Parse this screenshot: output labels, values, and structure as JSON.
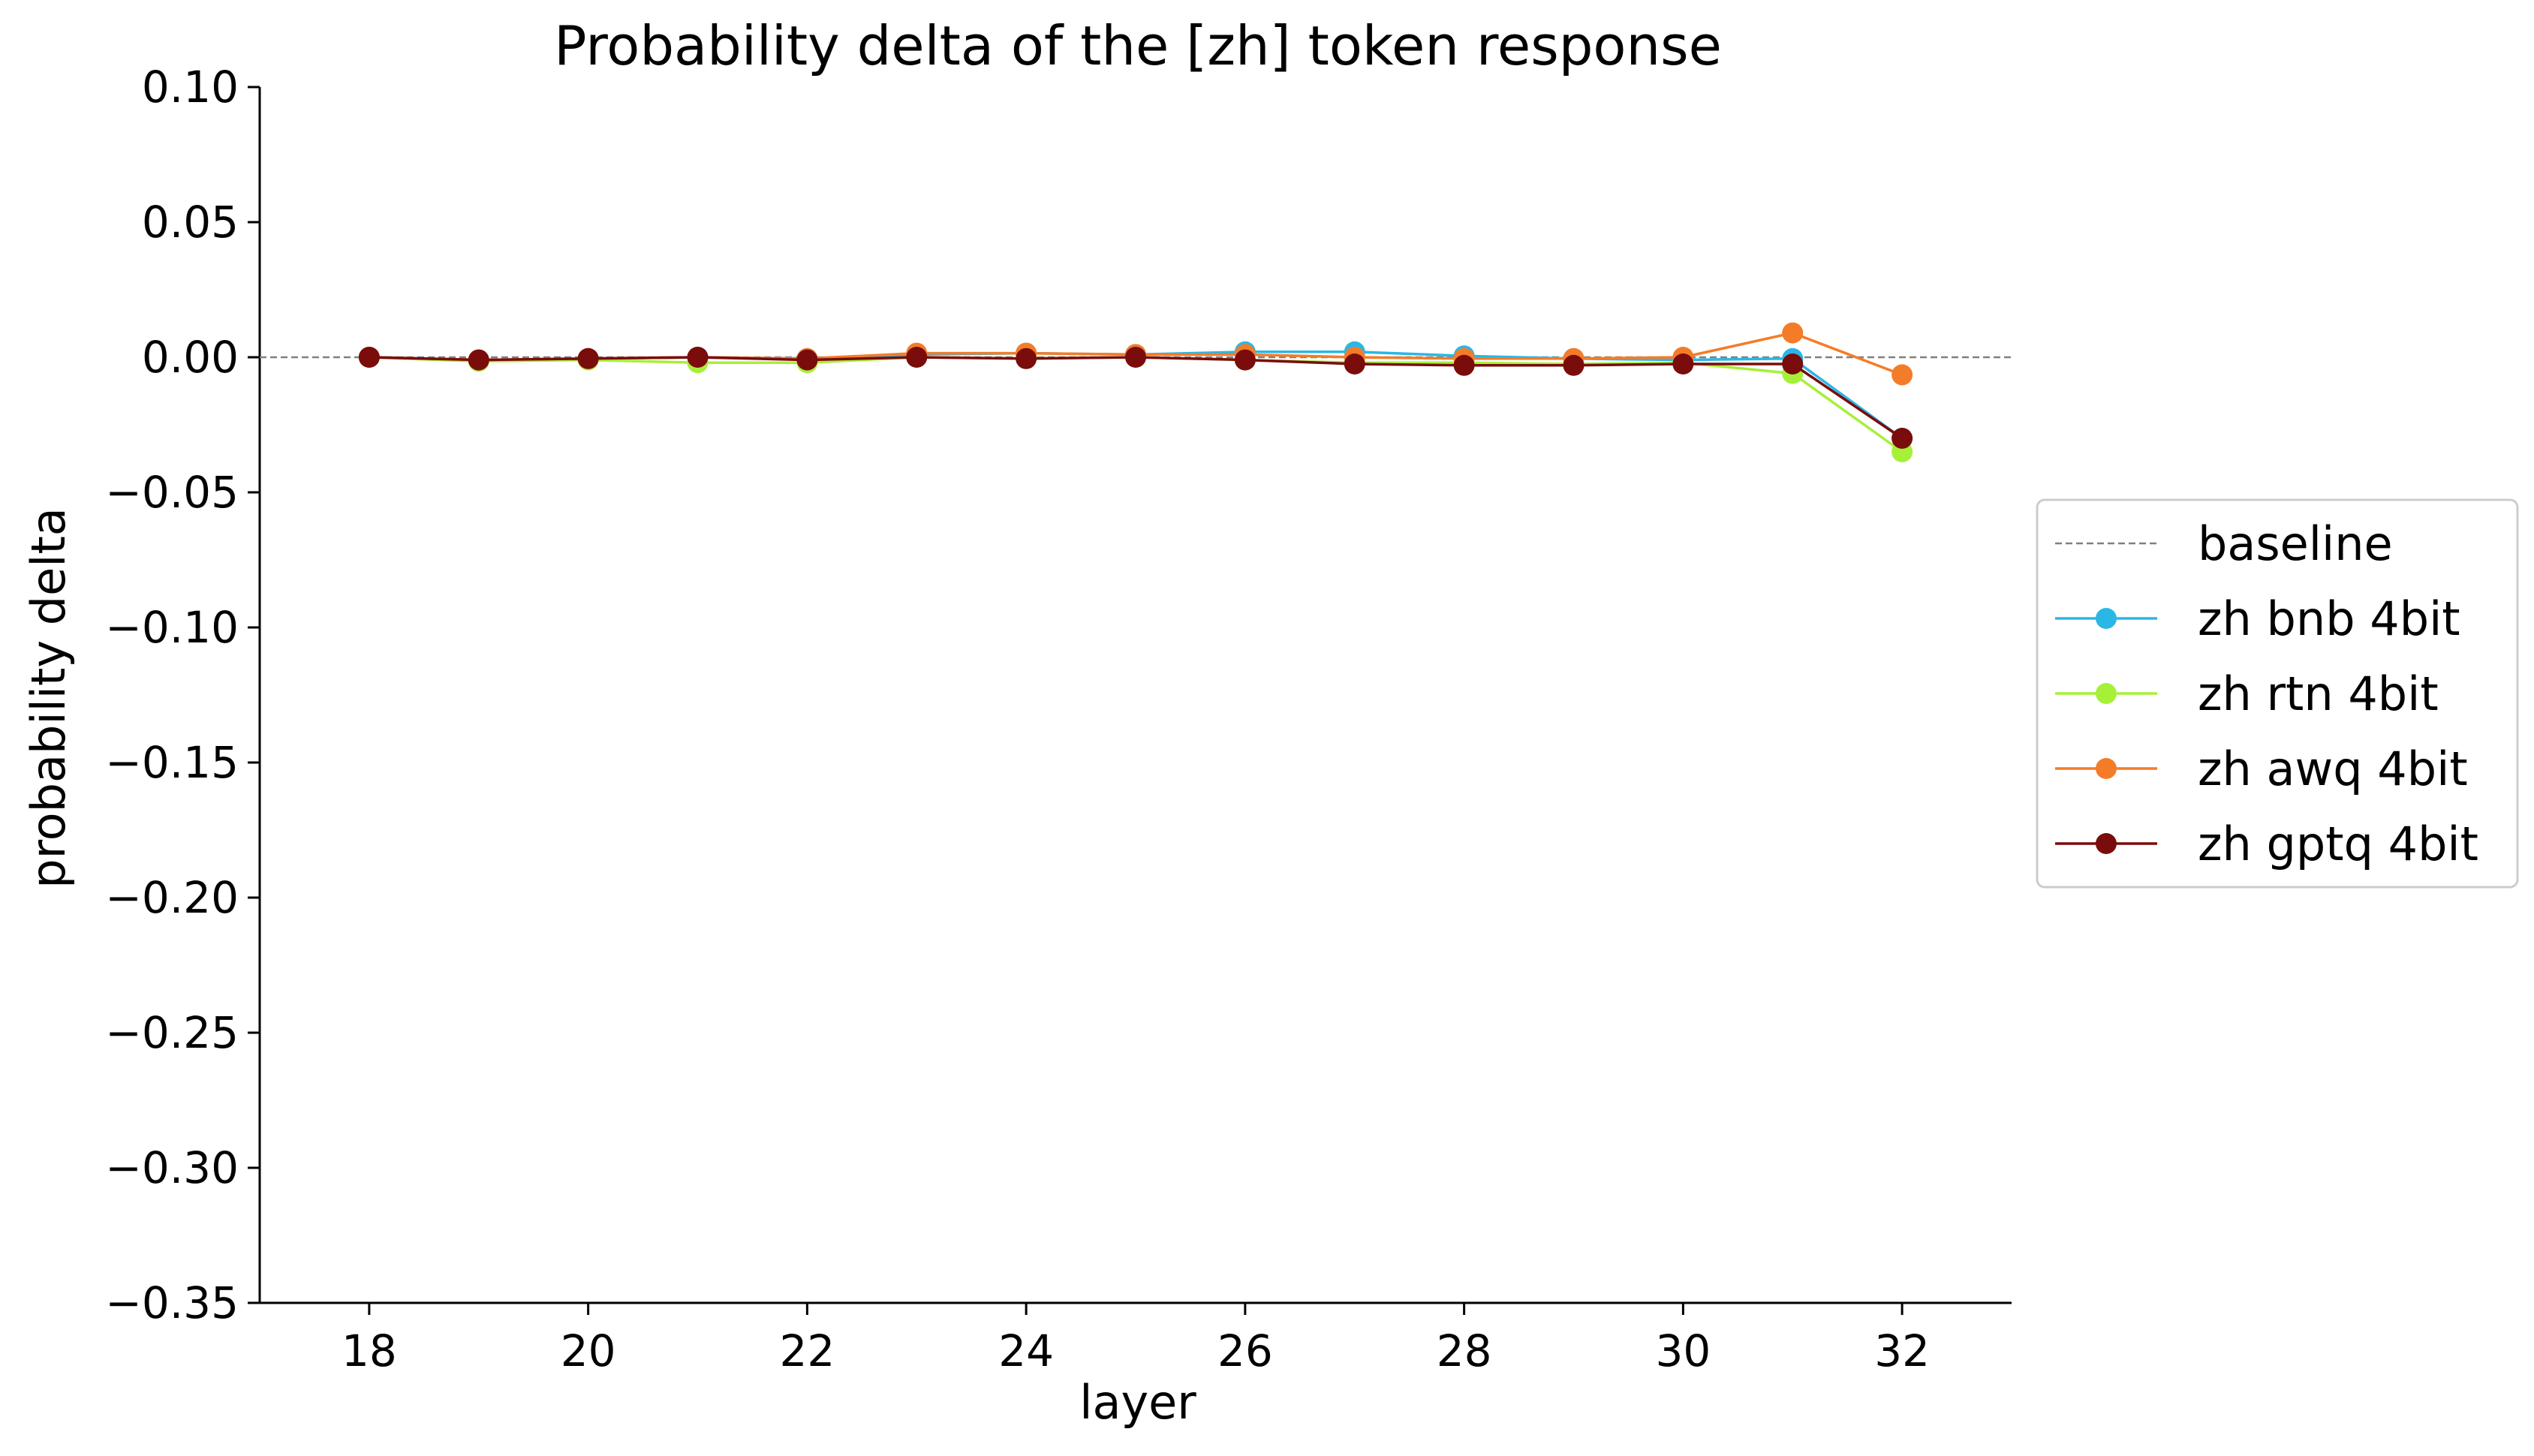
{
  "chart_data": {
    "type": "line",
    "title": "Probability delta of the [zh] token response",
    "xlabel": "layer",
    "ylabel": "probability delta",
    "xlim": [
      17,
      33
    ],
    "ylim": [
      -0.35,
      0.1
    ],
    "xticks": [
      18,
      20,
      22,
      24,
      26,
      28,
      30,
      32
    ],
    "xtick_labels": [
      "18",
      "20",
      "22",
      "24",
      "26",
      "28",
      "30",
      "32"
    ],
    "yticks": [
      0.1,
      0.05,
      0.0,
      -0.05,
      -0.1,
      -0.15,
      -0.2,
      -0.25,
      -0.3,
      -0.35
    ],
    "ytick_labels": [
      "0.10",
      "0.05",
      "0.00",
      "−0.05",
      "−0.10",
      "−0.15",
      "−0.20",
      "−0.25",
      "−0.30",
      "−0.35"
    ],
    "grid": false,
    "legend_position": "right",
    "baseline": {
      "name": "baseline",
      "value": 0.0,
      "color": "#808080",
      "style": "dashed"
    },
    "x": [
      18,
      19,
      20,
      21,
      22,
      23,
      24,
      25,
      26,
      27,
      28,
      29,
      30,
      31,
      32
    ],
    "series": [
      {
        "name": "zh bnb 4bit",
        "color": "#2ab7e6",
        "values": [
          0.0,
          -0.001,
          -0.0005,
          0.0,
          -0.0005,
          0.001,
          0.0015,
          0.001,
          0.002,
          0.002,
          0.0005,
          -0.0005,
          -0.001,
          -0.0005,
          -0.03
        ]
      },
      {
        "name": "zh rtn 4bit",
        "color": "#a6f038",
        "values": [
          0.0,
          -0.0015,
          -0.001,
          -0.002,
          -0.002,
          0.0,
          -0.0005,
          0.0,
          -0.001,
          -0.002,
          -0.002,
          -0.0025,
          -0.002,
          -0.006,
          -0.035
        ]
      },
      {
        "name": "zh awq 4bit",
        "color": "#f47c28",
        "values": [
          0.0,
          -0.001,
          -0.0005,
          0.0,
          -0.0005,
          0.0015,
          0.0015,
          0.001,
          0.001,
          0.0,
          -0.0005,
          -0.0005,
          0.0,
          0.009,
          -0.0065
        ]
      },
      {
        "name": "zh gptq 4bit",
        "color": "#7a0c0c",
        "values": [
          0.0,
          -0.001,
          -0.0005,
          0.0,
          -0.001,
          0.0,
          -0.0005,
          0.0,
          -0.001,
          -0.0025,
          -0.003,
          -0.003,
          -0.0025,
          -0.0025,
          -0.03
        ]
      }
    ]
  }
}
